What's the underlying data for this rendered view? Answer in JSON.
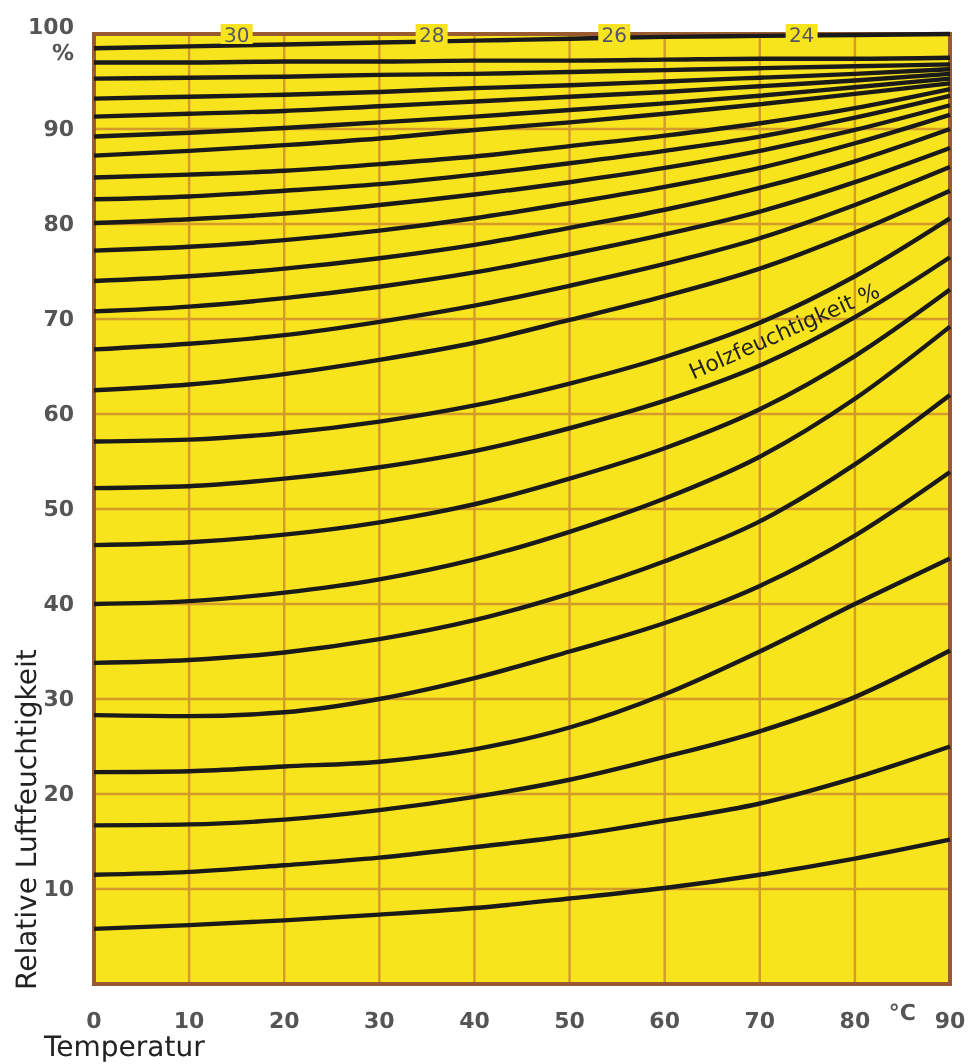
{
  "chart_data": {
    "type": "line",
    "xlabel": "Temperatur",
    "ylabel": "Relative Luftfeuchtigkeit",
    "x": [
      0,
      10,
      20,
      30,
      40,
      50,
      60,
      70,
      80,
      90
    ],
    "xlim": [
      0,
      90
    ],
    "ylim": [
      0,
      100
    ],
    "xticks": [
      0,
      10,
      20,
      30,
      40,
      50,
      60,
      70,
      80,
      90
    ],
    "yticks": [
      10,
      20,
      30,
      40,
      50,
      60,
      70,
      80,
      90,
      {
        "value": 100,
        "label": "100 %"
      }
    ],
    "grid": true,
    "marker": "none",
    "line_style": "solid",
    "series": [
      {
        "color": "#1a1a1a",
        "values": [
          5.8,
          6.2,
          6.7,
          7.3,
          8.0,
          9.0,
          10.1,
          11.5,
          13.2,
          15.2
        ]
      },
      {
        "color": "#1a1a1a",
        "values": [
          11.5,
          11.8,
          12.5,
          13.3,
          14.4,
          15.6,
          17.2,
          19.0,
          21.7,
          25.0
        ]
      },
      {
        "color": "#1a1a1a",
        "values": [
          16.7,
          16.8,
          17.3,
          18.3,
          19.7,
          21.5,
          23.9,
          26.6,
          30.2,
          35.1
        ]
      },
      {
        "color": "#1a1a1a",
        "values": [
          22.3,
          22.4,
          22.9,
          23.4,
          24.7,
          27.0,
          30.5,
          35.0,
          40.0,
          44.8
        ]
      },
      {
        "color": "#1a1a1a",
        "values": [
          28.3,
          28.2,
          28.6,
          30.0,
          32.2,
          35.0,
          38.0,
          41.9,
          47.2,
          53.9
        ]
      },
      {
        "color": "#1a1a1a",
        "values": [
          33.8,
          34.1,
          34.9,
          36.3,
          38.3,
          41.1,
          44.5,
          48.7,
          54.7,
          62.0
        ]
      },
      {
        "color": "#1a1a1a",
        "values": [
          40.0,
          40.3,
          41.2,
          42.6,
          44.7,
          47.6,
          51.1,
          55.5,
          61.6,
          69.2
        ]
      },
      {
        "color": "#1a1a1a",
        "values": [
          46.2,
          46.5,
          47.3,
          48.6,
          50.5,
          53.2,
          56.4,
          60.5,
          66.1,
          73.1
        ]
      },
      {
        "color": "#1a1a1a",
        "values": [
          52.2,
          52.4,
          53.2,
          54.4,
          56.1,
          58.5,
          61.4,
          65.1,
          70.2,
          76.5
        ]
      },
      {
        "color": "#1a1a1a",
        "values": [
          57.1,
          57.3,
          58.0,
          59.2,
          60.9,
          63.2,
          66.0,
          69.6,
          74.5,
          80.6
        ]
      },
      {
        "color": "#1a1a1a",
        "values": [
          62.5,
          63.1,
          64.2,
          65.7,
          67.5,
          69.9,
          72.4,
          75.3,
          79.1,
          83.5
        ]
      },
      {
        "color": "#1a1a1a",
        "values": [
          66.8,
          67.4,
          68.3,
          69.7,
          71.4,
          73.5,
          75.8,
          78.5,
          82.0,
          86.0
        ]
      },
      {
        "color": "#1a1a1a",
        "values": [
          70.8,
          71.3,
          72.2,
          73.4,
          74.9,
          76.8,
          78.9,
          81.3,
          84.4,
          88.0
        ]
      },
      {
        "color": "#1a1a1a",
        "values": [
          74.0,
          74.5,
          75.3,
          76.4,
          77.8,
          79.6,
          81.5,
          83.8,
          86.6,
          90.0
        ]
      },
      {
        "color": "#1a1a1a",
        "values": [
          77.2,
          77.6,
          78.3,
          79.3,
          80.6,
          82.2,
          83.9,
          85.9,
          88.5,
          91.5
        ]
      },
      {
        "color": "#1a1a1a",
        "values": [
          80.1,
          80.5,
          81.1,
          82.0,
          83.1,
          84.4,
          85.9,
          87.7,
          89.9,
          92.5
        ]
      },
      {
        "color": "#1a1a1a",
        "values": [
          82.6,
          82.9,
          83.5,
          84.2,
          85.2,
          86.4,
          87.7,
          89.2,
          91.2,
          93.5
        ]
      },
      {
        "color": "#1a1a1a",
        "values": [
          84.9,
          85.2,
          85.6,
          86.3,
          87.1,
          88.2,
          89.3,
          90.6,
          92.2,
          94.2
        ]
      },
      {
        "color": "#1a1a1a",
        "values": [
          87.2,
          87.7,
          88.3,
          89.0,
          89.9,
          90.7,
          91.6,
          92.6,
          93.7,
          94.8
        ]
      },
      {
        "color": "#1a1a1a",
        "values": [
          89.2,
          89.6,
          90.1,
          90.7,
          91.3,
          92.0,
          92.7,
          93.5,
          94.4,
          95.3
        ]
      },
      {
        "color": "#1a1a1a",
        "values": [
          91.3,
          91.6,
          91.9,
          92.4,
          92.9,
          93.4,
          93.9,
          94.5,
          95.1,
          95.8
        ]
      },
      {
        "color": "#1a1a1a",
        "values": [
          93.2,
          93.4,
          93.6,
          93.9,
          94.3,
          94.6,
          95.0,
          95.4,
          95.8,
          96.3
        ]
      },
      {
        "color": "#1a1a1a",
        "values": [
          95.3,
          95.4,
          95.5,
          95.7,
          95.8,
          96.0,
          96.2,
          96.4,
          96.6,
          96.8
        ]
      },
      {
        "color": "#1a1a1a",
        "values": [
          97.0,
          97.0,
          97.1,
          97.1,
          97.2,
          97.2,
          97.3,
          97.4,
          97.4,
          97.5
        ]
      },
      {
        "color": "#1a1a1a",
        "values": [
          98.5,
          98.7,
          98.9,
          99.1,
          99.3,
          99.5,
          99.7,
          99.8,
          99.9,
          100
        ]
      }
    ],
    "annotations": [
      "Holzfeuchtigkeit %",
      {
        "text": "30",
        "x": 15,
        "y": 100
      },
      {
        "text": "28",
        "x": 35.5,
        "y": 100
      },
      {
        "text": "26",
        "x": 54.7,
        "y": 100
      },
      {
        "text": "24",
        "x": 74.4,
        "y": 100
      },
      "°C"
    ]
  }
}
